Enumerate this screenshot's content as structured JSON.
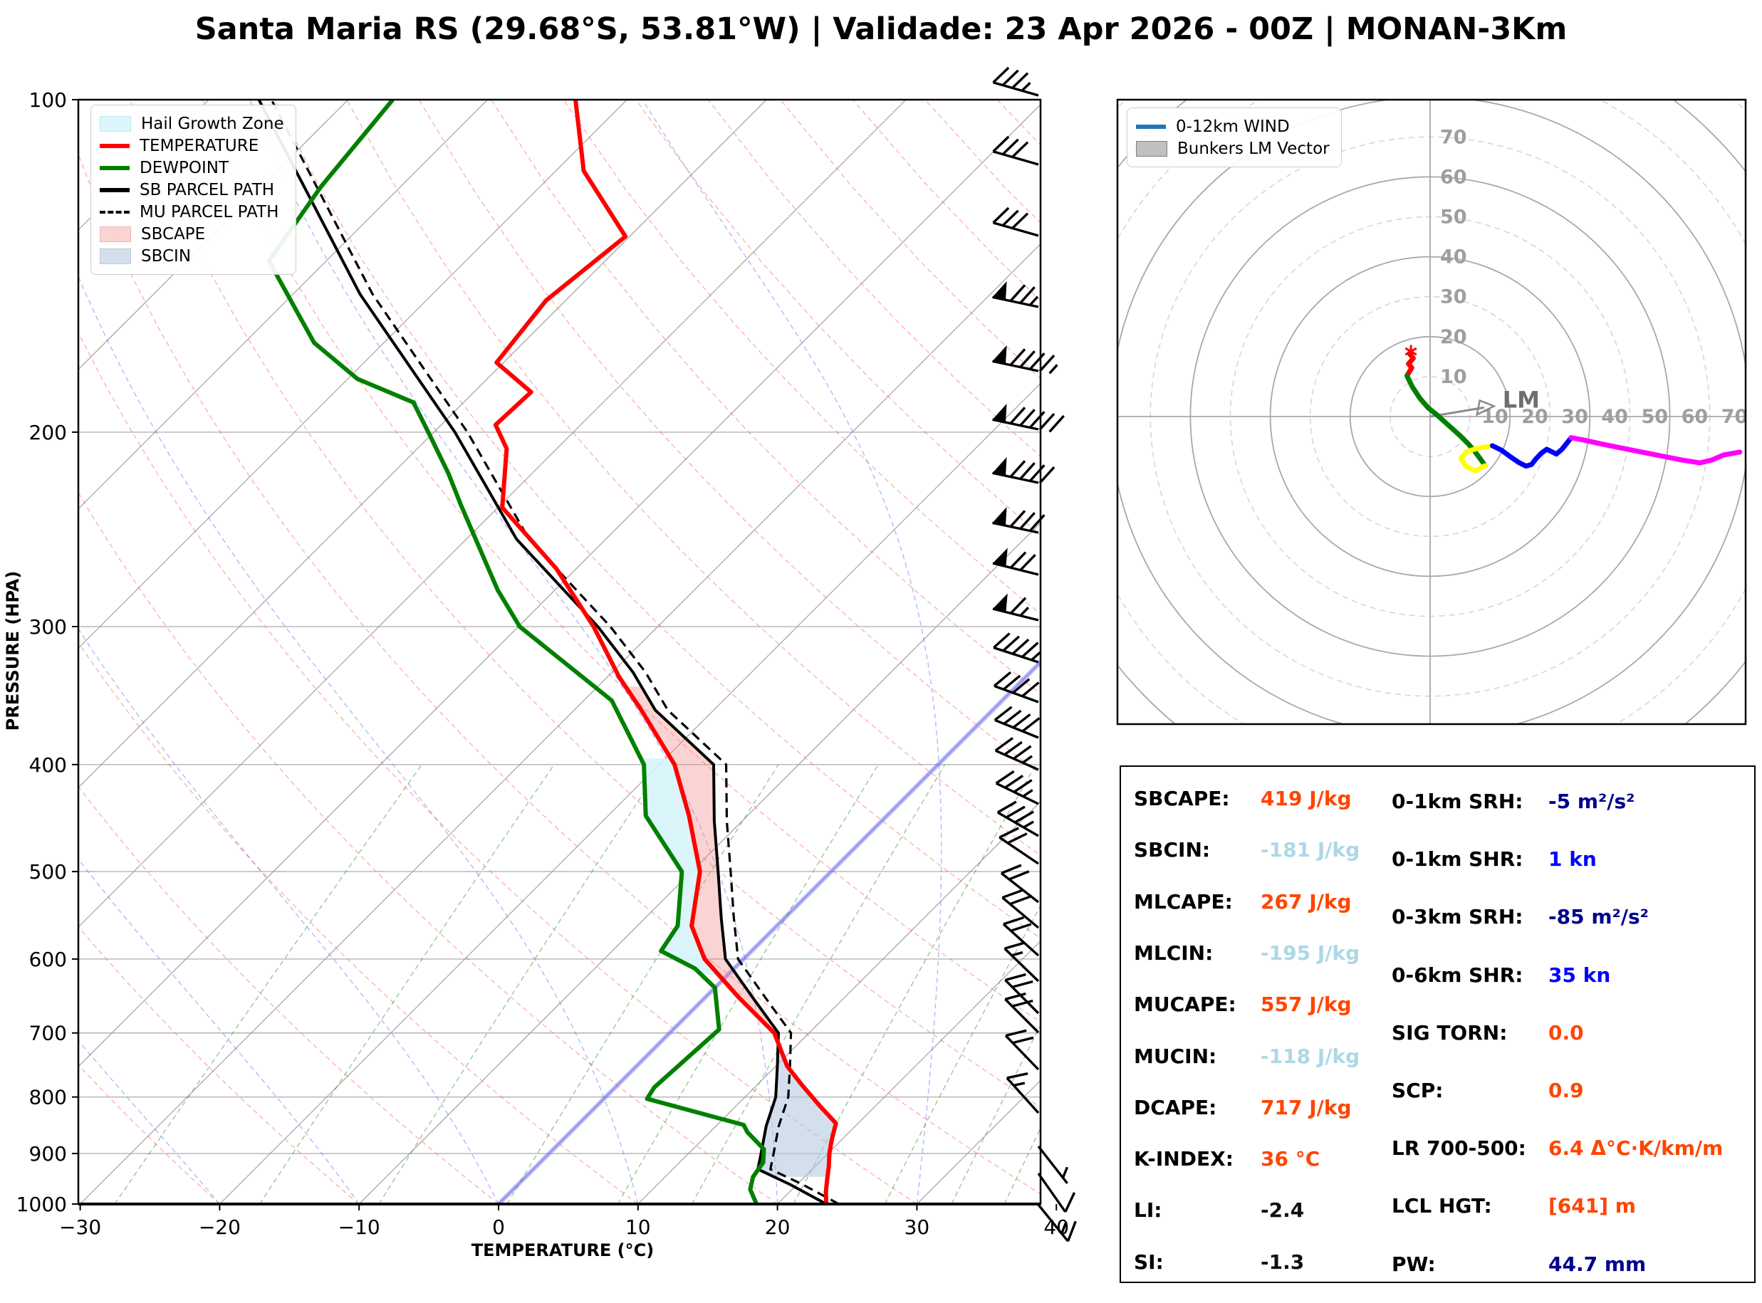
{
  "title": "Santa Maria RS (29.68°S, 53.81°W) | Validade: 23 Apr 2026 - 00Z | MONAN-3Km",
  "chart_data": {
    "type": "skew-t log-p sounding with hodograph",
    "skewt": {
      "xlabel": "TEMPERATURE (°C)",
      "ylabel": "PRESSURE (HPA)",
      "xlim": [
        -30,
        40
      ],
      "pressure_ticks": [
        100,
        200,
        300,
        400,
        500,
        600,
        700,
        800,
        900,
        1000
      ],
      "temp_ticks": [
        -30,
        -20,
        -10,
        0,
        10,
        20,
        30,
        40
      ],
      "legend": [
        {
          "label": "Hail Growth Zone",
          "type": "patch",
          "color": "rgba(215,245,250,0.9)",
          "border": "#bfe8ee"
        },
        {
          "label": "TEMPERATURE",
          "type": "line",
          "color": "#ff0000"
        },
        {
          "label": "DEWPOINT",
          "type": "line",
          "color": "#008000"
        },
        {
          "label": "SB PARCEL PATH",
          "type": "line",
          "color": "#000000"
        },
        {
          "label": "MU PARCEL PATH",
          "type": "dashed",
          "color": "#000000"
        },
        {
          "label": "SBCAPE",
          "type": "patch",
          "color": "rgba(240,128,128,0.35)",
          "border": "#eeb8b8"
        },
        {
          "label": "SBCIN",
          "type": "patch",
          "color": "rgba(176,196,222,0.55)",
          "border": "#b9cbde"
        }
      ],
      "curves": {
        "temperature": [
          [
            1000,
            23.5
          ],
          [
            975,
            22.6
          ],
          [
            950,
            21.8
          ],
          [
            925,
            21.0
          ],
          [
            900,
            20.1
          ],
          [
            875,
            19.3
          ],
          [
            845,
            18.4
          ],
          [
            815,
            16.0
          ],
          [
            780,
            13.2
          ],
          [
            750,
            10.8
          ],
          [
            700,
            7.5
          ],
          [
            650,
            2.4
          ],
          [
            600,
            -2.8
          ],
          [
            560,
            -6.1
          ],
          [
            500,
            -9.4
          ],
          [
            445,
            -14.2
          ],
          [
            400,
            -18.9
          ],
          [
            357,
            -25.2
          ],
          [
            333,
            -29.2
          ],
          [
            300,
            -34.6
          ],
          [
            266,
            -41.4
          ],
          [
            234,
            -49.7
          ],
          [
            207,
            -53.6
          ],
          [
            197,
            -56.1
          ],
          [
            184,
            -55.9
          ],
          [
            173,
            -60.5
          ],
          [
            152,
            -61.4
          ],
          [
            133,
            -60.3
          ],
          [
            116,
            -68.0
          ],
          [
            100,
            -73.7
          ]
        ],
        "dewpoint": [
          [
            1000,
            18.5
          ],
          [
            970,
            17.0
          ],
          [
            945,
            16.3
          ],
          [
            917,
            16.0
          ],
          [
            892,
            15.1
          ],
          [
            861,
            12.7
          ],
          [
            848,
            11.9
          ],
          [
            803,
            3.1
          ],
          [
            784,
            2.8
          ],
          [
            695,
            3.3
          ],
          [
            637,
            0.0
          ],
          [
            612,
            -2.8
          ],
          [
            590,
            -6.5
          ],
          [
            560,
            -7.1
          ],
          [
            500,
            -10.7
          ],
          [
            445,
            -17.3
          ],
          [
            400,
            -21.1
          ],
          [
            350,
            -28.0
          ],
          [
            300,
            -39.9
          ],
          [
            278,
            -44.1
          ],
          [
            233,
            -52.8
          ],
          [
            218,
            -56.0
          ],
          [
            202,
            -59.9
          ],
          [
            188,
            -63.6
          ],
          [
            179,
            -69.3
          ],
          [
            166,
            -75.0
          ],
          [
            140,
            -84.1
          ],
          [
            120,
            -85.7
          ],
          [
            100,
            -86.8
          ]
        ],
        "sb_parcel": [
          [
            1000,
            23.5
          ],
          [
            960,
            19.5
          ],
          [
            930,
            16.1
          ],
          [
            900,
            15.2
          ],
          [
            850,
            13.6
          ],
          [
            800,
            12.2
          ],
          [
            750,
            10.1
          ],
          [
            700,
            7.8
          ],
          [
            650,
            3.4
          ],
          [
            600,
            -1.3
          ],
          [
            550,
            -4.6
          ],
          [
            500,
            -8.1
          ],
          [
            450,
            -12.0
          ],
          [
            400,
            -16.1
          ],
          [
            357,
            -24.2
          ],
          [
            330,
            -28.5
          ],
          [
            300,
            -34.3
          ],
          [
            250,
            -46.4
          ],
          [
            200,
            -58.5
          ],
          [
            150,
            -75.2
          ],
          [
            100,
            -96.4
          ]
        ],
        "mu_parcel_offset_degC": 0.9
      },
      "fills": {
        "sbcape": {
          "between": [
            "temperature",
            "sb_parcel"
          ],
          "p_top": 340,
          "p_bottom": 703
        },
        "sbcin": {
          "between": [
            "sb_parcel",
            "temperature"
          ],
          "p_top": 707,
          "p_bottom": 945
        },
        "hail_growth_zone": {
          "between": [
            "dewpoint",
            "temperature"
          ],
          "p_top": 395,
          "p_bottom": 620
        }
      },
      "background": {
        "isotherm_step": 10,
        "zero_isotherm_highlight": true,
        "dry_adiabats_theta": [
          -30,
          230,
          10
        ],
        "moist_adiabats_T0": [
          -40,
          45,
          10
        ],
        "mixing_ratio_g_kg": [
          0.4,
          1,
          2,
          4,
          7,
          10,
          16,
          24,
          32,
          40
        ]
      },
      "wind_barbs": [
        {
          "y": 134,
          "flags": 0,
          "full": 3,
          "half": 1,
          "ang": 16,
          "side": 1
        },
        {
          "y": 231,
          "flags": 0,
          "full": 3,
          "half": 0,
          "ang": 16,
          "side": 1
        },
        {
          "y": 331,
          "flags": 0,
          "full": 3,
          "half": 0,
          "ang": 16,
          "side": 1
        },
        {
          "y": 431,
          "flags": 1,
          "full": 2,
          "half": 1,
          "ang": 12,
          "side": 1
        },
        {
          "y": 521,
          "flags": 1,
          "full": 4,
          "half": 1,
          "ang": 12,
          "side": 1
        },
        {
          "y": 603,
          "flags": 1,
          "full": 5,
          "half": 0,
          "ang": 12,
          "side": 1
        },
        {
          "y": 678,
          "flags": 1,
          "full": 4,
          "half": 0,
          "ang": 12,
          "side": 1
        },
        {
          "y": 748,
          "flags": 1,
          "full": 3,
          "half": 0,
          "ang": 12,
          "side": 1
        },
        {
          "y": 807,
          "flags": 1,
          "full": 2,
          "half": 0,
          "ang": 14,
          "side": 1
        },
        {
          "y": 871,
          "flags": 1,
          "full": 1,
          "half": 1,
          "ang": 14,
          "side": 1
        },
        {
          "y": 930,
          "flags": 0,
          "full": 4,
          "half": 1,
          "ang": 18,
          "side": 1
        },
        {
          "y": 986,
          "flags": 0,
          "full": 4,
          "half": 0,
          "ang": 20,
          "side": 1
        },
        {
          "y": 1036,
          "flags": 0,
          "full": 4,
          "half": 0,
          "ang": 22,
          "side": 1
        },
        {
          "y": 1081,
          "flags": 0,
          "full": 3,
          "half": 1,
          "ang": 24,
          "side": 1
        },
        {
          "y": 1129,
          "flags": 0,
          "full": 3,
          "half": 1,
          "ang": 26,
          "side": 1
        },
        {
          "y": 1174,
          "flags": 0,
          "full": 3,
          "half": 1,
          "ang": 30,
          "side": 1
        },
        {
          "y": 1213,
          "flags": 0,
          "full": 2,
          "half": 0,
          "ang": 34,
          "side": 1
        },
        {
          "y": 1267,
          "flags": 0,
          "full": 2,
          "half": 0,
          "ang": 38,
          "side": 1
        },
        {
          "y": 1303,
          "flags": 0,
          "full": 2,
          "half": 0,
          "ang": 40,
          "side": 1
        },
        {
          "y": 1342,
          "flags": 0,
          "full": 2,
          "half": 0,
          "ang": 42,
          "side": 1
        },
        {
          "y": 1378,
          "flags": 0,
          "full": 1,
          "half": 1,
          "ang": 44,
          "side": 1
        },
        {
          "y": 1423,
          "flags": 0,
          "full": 2,
          "half": 0,
          "ang": 45,
          "side": 1
        },
        {
          "y": 1450,
          "flags": 0,
          "full": 2,
          "half": 0,
          "ang": 45,
          "side": 1
        },
        {
          "y": 1502,
          "flags": 0,
          "full": 2,
          "half": 0,
          "ang": 46,
          "side": 1
        },
        {
          "y": 1563,
          "flags": 0,
          "full": 1,
          "half": 1,
          "ang": 48,
          "side": 1
        },
        {
          "y": 1610,
          "flags": 0,
          "full": 0,
          "half": 1,
          "ang": 232,
          "side": -1
        },
        {
          "y": 1648,
          "flags": 0,
          "full": 1,
          "half": 0,
          "ang": 235,
          "side": -1
        },
        {
          "y": 1692,
          "flags": 0,
          "full": 1,
          "half": 1,
          "ang": 231,
          "side": -1
        }
      ]
    },
    "hodograph": {
      "legend": [
        {
          "label": "0-12km WIND",
          "type": "line",
          "color": "#1f77b4"
        },
        {
          "label": "Bunkers LM Vector",
          "type": "patch",
          "color": "#c0c0c0",
          "border": "#808080"
        }
      ],
      "ring_labels": [
        10,
        20,
        30,
        40,
        50,
        60,
        70
      ],
      "ring_step": 10,
      "lm_vector": {
        "u": 16,
        "v": 2.6,
        "label": "LM"
      },
      "trace": [
        {
          "color": "#ff0000",
          "points": [
            [
              -5.2,
              15.8
            ],
            [
              -4.2,
              14.6
            ],
            [
              -5.4,
              13.2
            ],
            [
              -4.6,
              12.2
            ],
            [
              -5.8,
              10.2
            ]
          ]
        },
        {
          "color": "#008000",
          "points": [
            [
              -5.8,
              10.2
            ],
            [
              -4.5,
              7.5
            ],
            [
              -2.5,
              4.5
            ],
            [
              -0.5,
              2.2
            ],
            [
              1.5,
              0.6
            ],
            [
              3.5,
              -1.2
            ],
            [
              5.5,
              -3.0
            ],
            [
              7.5,
              -4.8
            ],
            [
              9.5,
              -6.8
            ],
            [
              11.0,
              -8.5
            ],
            [
              12.5,
              -10.5
            ],
            [
              13.8,
              -12.3
            ]
          ]
        },
        {
          "color": "#ffff00",
          "points": [
            [
              13.8,
              -12.3
            ],
            [
              11.3,
              -13.6
            ],
            [
              8.9,
              -12.4
            ],
            [
              7.7,
              -10.4
            ],
            [
              9.2,
              -8.8
            ],
            [
              11.6,
              -8.0
            ],
            [
              13.9,
              -7.6
            ],
            [
              15.6,
              -7.3
            ]
          ]
        },
        {
          "color": "#0000ff",
          "points": [
            [
              15.6,
              -7.3
            ],
            [
              17.8,
              -8.4
            ],
            [
              20.0,
              -10.0
            ],
            [
              22.2,
              -11.5
            ],
            [
              24.0,
              -12.4
            ],
            [
              25.4,
              -12.0
            ],
            [
              26.4,
              -10.7
            ],
            [
              27.8,
              -9.2
            ],
            [
              29.2,
              -8.2
            ],
            [
              30.6,
              -8.9
            ],
            [
              31.6,
              -9.4
            ],
            [
              33.0,
              -8.2
            ],
            [
              34.3,
              -6.6
            ],
            [
              35.3,
              -5.3
            ]
          ]
        },
        {
          "color": "#ff00ff",
          "points": [
            [
              35.3,
              -5.3
            ],
            [
              38.5,
              -5.9
            ],
            [
              43.0,
              -6.9
            ],
            [
              48.0,
              -7.9
            ],
            [
              53.0,
              -8.9
            ],
            [
              58.0,
              -9.9
            ],
            [
              63.0,
              -10.9
            ],
            [
              67.5,
              -11.6
            ],
            [
              70.5,
              -10.9
            ],
            [
              73.5,
              -9.6
            ],
            [
              77.5,
              -8.9
            ]
          ]
        }
      ],
      "start_marker": {
        "u": -4.8,
        "v": 16.3,
        "color": "#ff0000"
      }
    }
  },
  "stats": {
    "left": [
      {
        "label": "SBCAPE:",
        "value": "419 J/kg",
        "color": "#ff4500"
      },
      {
        "label": "SBCIN:",
        "value": "-181 J/kg",
        "color": "#add8e6"
      },
      {
        "label": "MLCAPE:",
        "value": "267 J/kg",
        "color": "#ff4500"
      },
      {
        "label": "MLCIN:",
        "value": "-195 J/kg",
        "color": "#add8e6"
      },
      {
        "label": "MUCAPE:",
        "value": "557 J/kg",
        "color": "#ff4500"
      },
      {
        "label": "MUCIN:",
        "value": "-118 J/kg",
        "color": "#add8e6"
      },
      {
        "label": "DCAPE:",
        "value": "717 J/kg",
        "color": "#ff4500"
      },
      {
        "label": "K-INDEX:",
        "value": "36 °C",
        "color": "#ff4500"
      },
      {
        "label": "LI:",
        "value": "-2.4",
        "color": "#111111"
      },
      {
        "label": "SI:",
        "value": "-1.3",
        "color": "#111111"
      }
    ],
    "right": [
      {
        "label": "0-1km SRH:",
        "value": "-5 m²/s²",
        "color": "#00008b"
      },
      {
        "label": "0-1km SHR:",
        "value": "1 kn",
        "color": "#0000ff"
      },
      {
        "label": "0-3km SRH:",
        "value": "-85 m²/s²",
        "color": "#00008b"
      },
      {
        "label": "0-6km SHR:",
        "value": "35 kn",
        "color": "#0000ff"
      },
      {
        "label": "SIG TORN:",
        "value": "0.0",
        "color": "#ff4500"
      },
      {
        "label": "SCP:",
        "value": "0.9",
        "color": "#ff4500"
      },
      {
        "label": "LR 700-500:",
        "value": "6.4 Δ°C·K/km/m",
        "color": "#ff4500"
      },
      {
        "label": "LCL HGT:",
        "value": "[641] m",
        "color": "#ff4500"
      },
      {
        "label": "PW:",
        "value": "44.7 mm",
        "color": "#00008b"
      }
    ]
  }
}
